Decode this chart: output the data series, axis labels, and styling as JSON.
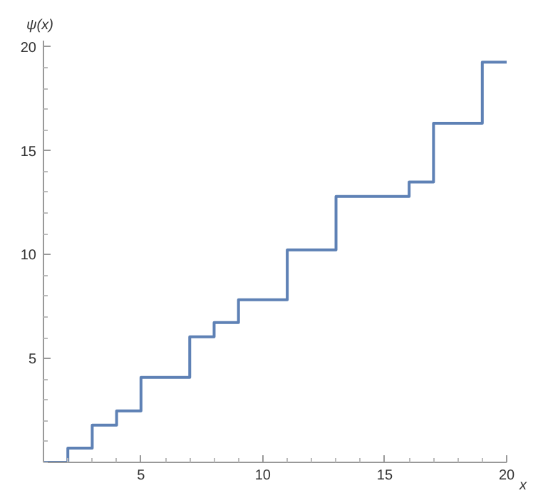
{
  "chart_data": {
    "type": "step",
    "xlabel": "x",
    "ylabel": "ψ(x)",
    "x": [
      1,
      2,
      3,
      4,
      5,
      7,
      8,
      9,
      11,
      13,
      16,
      17,
      19,
      20
    ],
    "series": [
      {
        "color": "#5e81b5",
        "values": [
          0,
          0.69,
          1.79,
          2.48,
          4.09,
          6.04,
          6.73,
          7.83,
          10.23,
          12.8,
          13.49,
          16.32,
          19.26,
          19.26
        ]
      }
    ],
    "xlim": [
      1,
      20
    ],
    "ylim": [
      0,
      20.3
    ],
    "xticks": [
      5,
      10,
      15,
      20
    ],
    "yticks": [
      5,
      10,
      15,
      20
    ],
    "grid": false,
    "marker": "none",
    "line_style": "solid"
  }
}
